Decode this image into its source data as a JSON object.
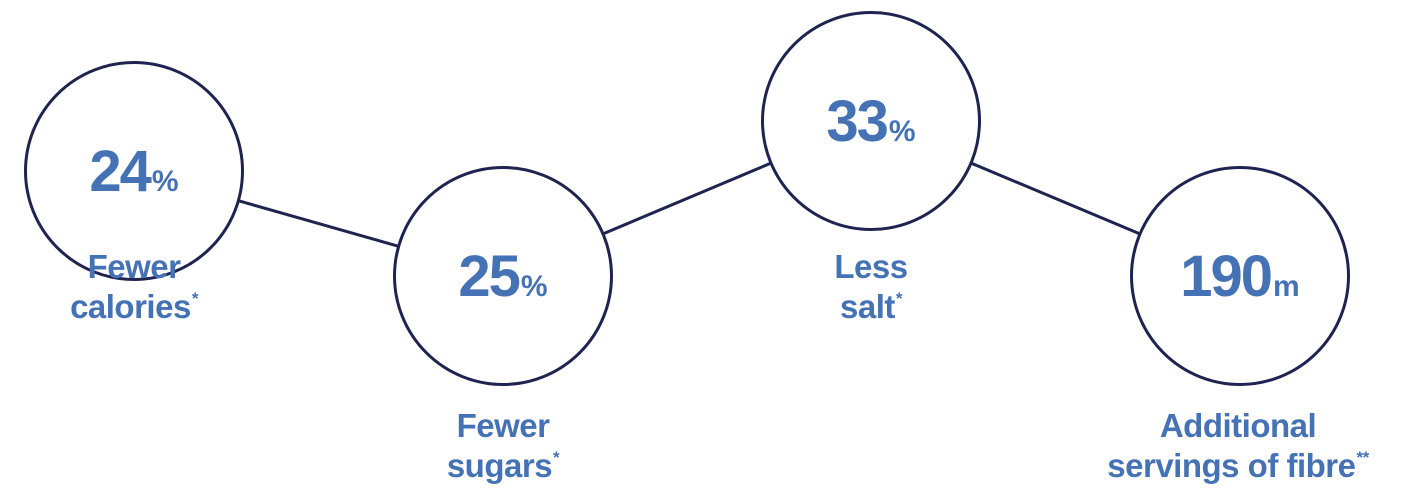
{
  "stats": [
    {
      "value": "24",
      "unit": "%",
      "caption_line1": "Fewer",
      "caption_line2": "calories",
      "footnote_mark": "*"
    },
    {
      "value": "25",
      "unit": "%",
      "caption_line1": "Fewer",
      "caption_line2": "sugars",
      "footnote_mark": "*"
    },
    {
      "value": "33",
      "unit": "%",
      "caption_line1": "Less",
      "caption_line2": "salt",
      "footnote_mark": "*"
    },
    {
      "value": "190",
      "unit": "m",
      "caption_line1": "Additional",
      "caption_line2": "servings of fibre",
      "footnote_mark": "**"
    }
  ],
  "colors": {
    "accent": "#4472b4",
    "outline": "#1f2350",
    "background": "#ffffff"
  }
}
